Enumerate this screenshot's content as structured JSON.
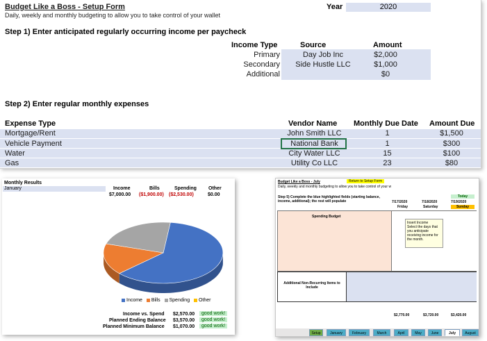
{
  "setup_form": {
    "title": "Budget Like a Boss - Setup Form",
    "subtitle": "Daily, weekly and monthly budgeting to allow you to take control of your wallet",
    "year_label": "Year",
    "year_value": "2020",
    "step1_heading": "Step 1) Enter anticipated regularly occurring income per paycheck",
    "income_headers": {
      "type": "Income Type",
      "source": "Source",
      "amount": "Amount"
    },
    "income_rows": [
      {
        "type": "Primary",
        "source": "Day Job Inc",
        "amount": "$2,000"
      },
      {
        "type": "Secondary",
        "source": "Side Hustle LLC",
        "amount": "$1,000"
      },
      {
        "type": "Additional",
        "source": "",
        "amount": "$0"
      }
    ],
    "step2_heading": "Step 2) Enter regular monthly expenses",
    "expense_headers": {
      "type": "Expense Type",
      "vendor": "Vendor Name",
      "due": "Monthly Due Date",
      "amount": "Amount Due"
    },
    "expense_rows": [
      {
        "type": "Mortgage/Rent",
        "vendor": "John Smith LLC",
        "due": "1",
        "amount": "$1,500"
      },
      {
        "type": "Vehicle Payment",
        "vendor": "National Bank",
        "due": "1",
        "amount": "$300"
      },
      {
        "type": "Water",
        "vendor": "City Water LLC",
        "due": "15",
        "amount": "$100"
      },
      {
        "type": "Gas",
        "vendor": "Utility Co LLC",
        "due": "23",
        "amount": "$80"
      }
    ]
  },
  "monthly_results": {
    "title": "Monthly Results",
    "month": "January",
    "headers": {
      "income": "Income",
      "bills": "Bills",
      "spending": "Spending",
      "other": "Other"
    },
    "values": {
      "income": "$7,000.00",
      "bills": "($1,900.00)",
      "spending": "($2,530.00)",
      "other": "$0.00"
    },
    "summary": [
      {
        "label": "Income vs. Spend",
        "value": "$2,570.00",
        "status": "good work!"
      },
      {
        "label": "Planned Ending Balance",
        "value": "$3,570.00",
        "status": "good work!"
      },
      {
        "label": "Planned Minimum Balance",
        "value": "$1,070.00",
        "status": "good work!"
      }
    ],
    "colors": {
      "income": "#4472c4",
      "bills": "#ed7d31",
      "spending": "#a5a5a5",
      "other": "#ffc000"
    },
    "chart_data": {
      "type": "pie",
      "categories": [
        "Income",
        "Bills",
        "Spending",
        "Other"
      ],
      "values": [
        7000,
        1900,
        2530,
        0
      ],
      "legend_position": "bottom"
    }
  },
  "july_sheet": {
    "title": "Budget Like a Boss - July",
    "return_link": "Return to Setup Form",
    "subtitle": "Daily, weekly and monthly budgeting to allow you to take control of your w",
    "step5": "Step 5) Complete the blue highlighted fields (starting balance, income, additional); the rest will populate",
    "today_label": "Today",
    "dates": [
      {
        "date": "7/17/2020",
        "day": "Friday"
      },
      {
        "date": "7/18/2020",
        "day": "Saturday"
      },
      {
        "date": "7/19/2020",
        "day": "Sunday"
      }
    ],
    "spending_budget_label": "Spending Budget",
    "note_title": "Insert Income",
    "note_body": "Select the days that you anticipate receiving income for the month.",
    "additional_label": "Additional Non-Recurring Items to Include",
    "totals": [
      "$2,770.00",
      "$3,720.00",
      "$3,420.00"
    ],
    "tabs": [
      "Setup",
      "January",
      "February",
      "March",
      "April",
      "May",
      "June",
      "July",
      "August"
    ],
    "active_tab": "July"
  }
}
